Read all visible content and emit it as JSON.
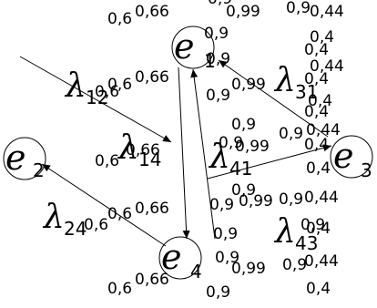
{
  "nodes": {
    "e1": {
      "letter": "e",
      "sub": "1"
    },
    "e2": {
      "letter": "e",
      "sub": "2"
    },
    "e3": {
      "letter": "e",
      "sub": "3"
    },
    "e4": {
      "letter": "e",
      "sub": "4"
    }
  },
  "edges": {
    "l12": {
      "symbol": "λ",
      "sub": "12"
    },
    "l14": {
      "symbol": "λ",
      "sub": "14"
    },
    "l31": {
      "symbol": "λ",
      "sub": "31"
    },
    "l41": {
      "symbol": "λ",
      "sub": "41"
    },
    "l24": {
      "symbol": "λ",
      "sub": "24"
    },
    "l43": {
      "symbol": "λ",
      "sub": "43"
    }
  },
  "probabilities": {
    "p06": "0,6",
    "p066": "0,66",
    "p09": "0,9",
    "p099": "0,99",
    "p04": "0,4",
    "p044": "0,44"
  }
}
